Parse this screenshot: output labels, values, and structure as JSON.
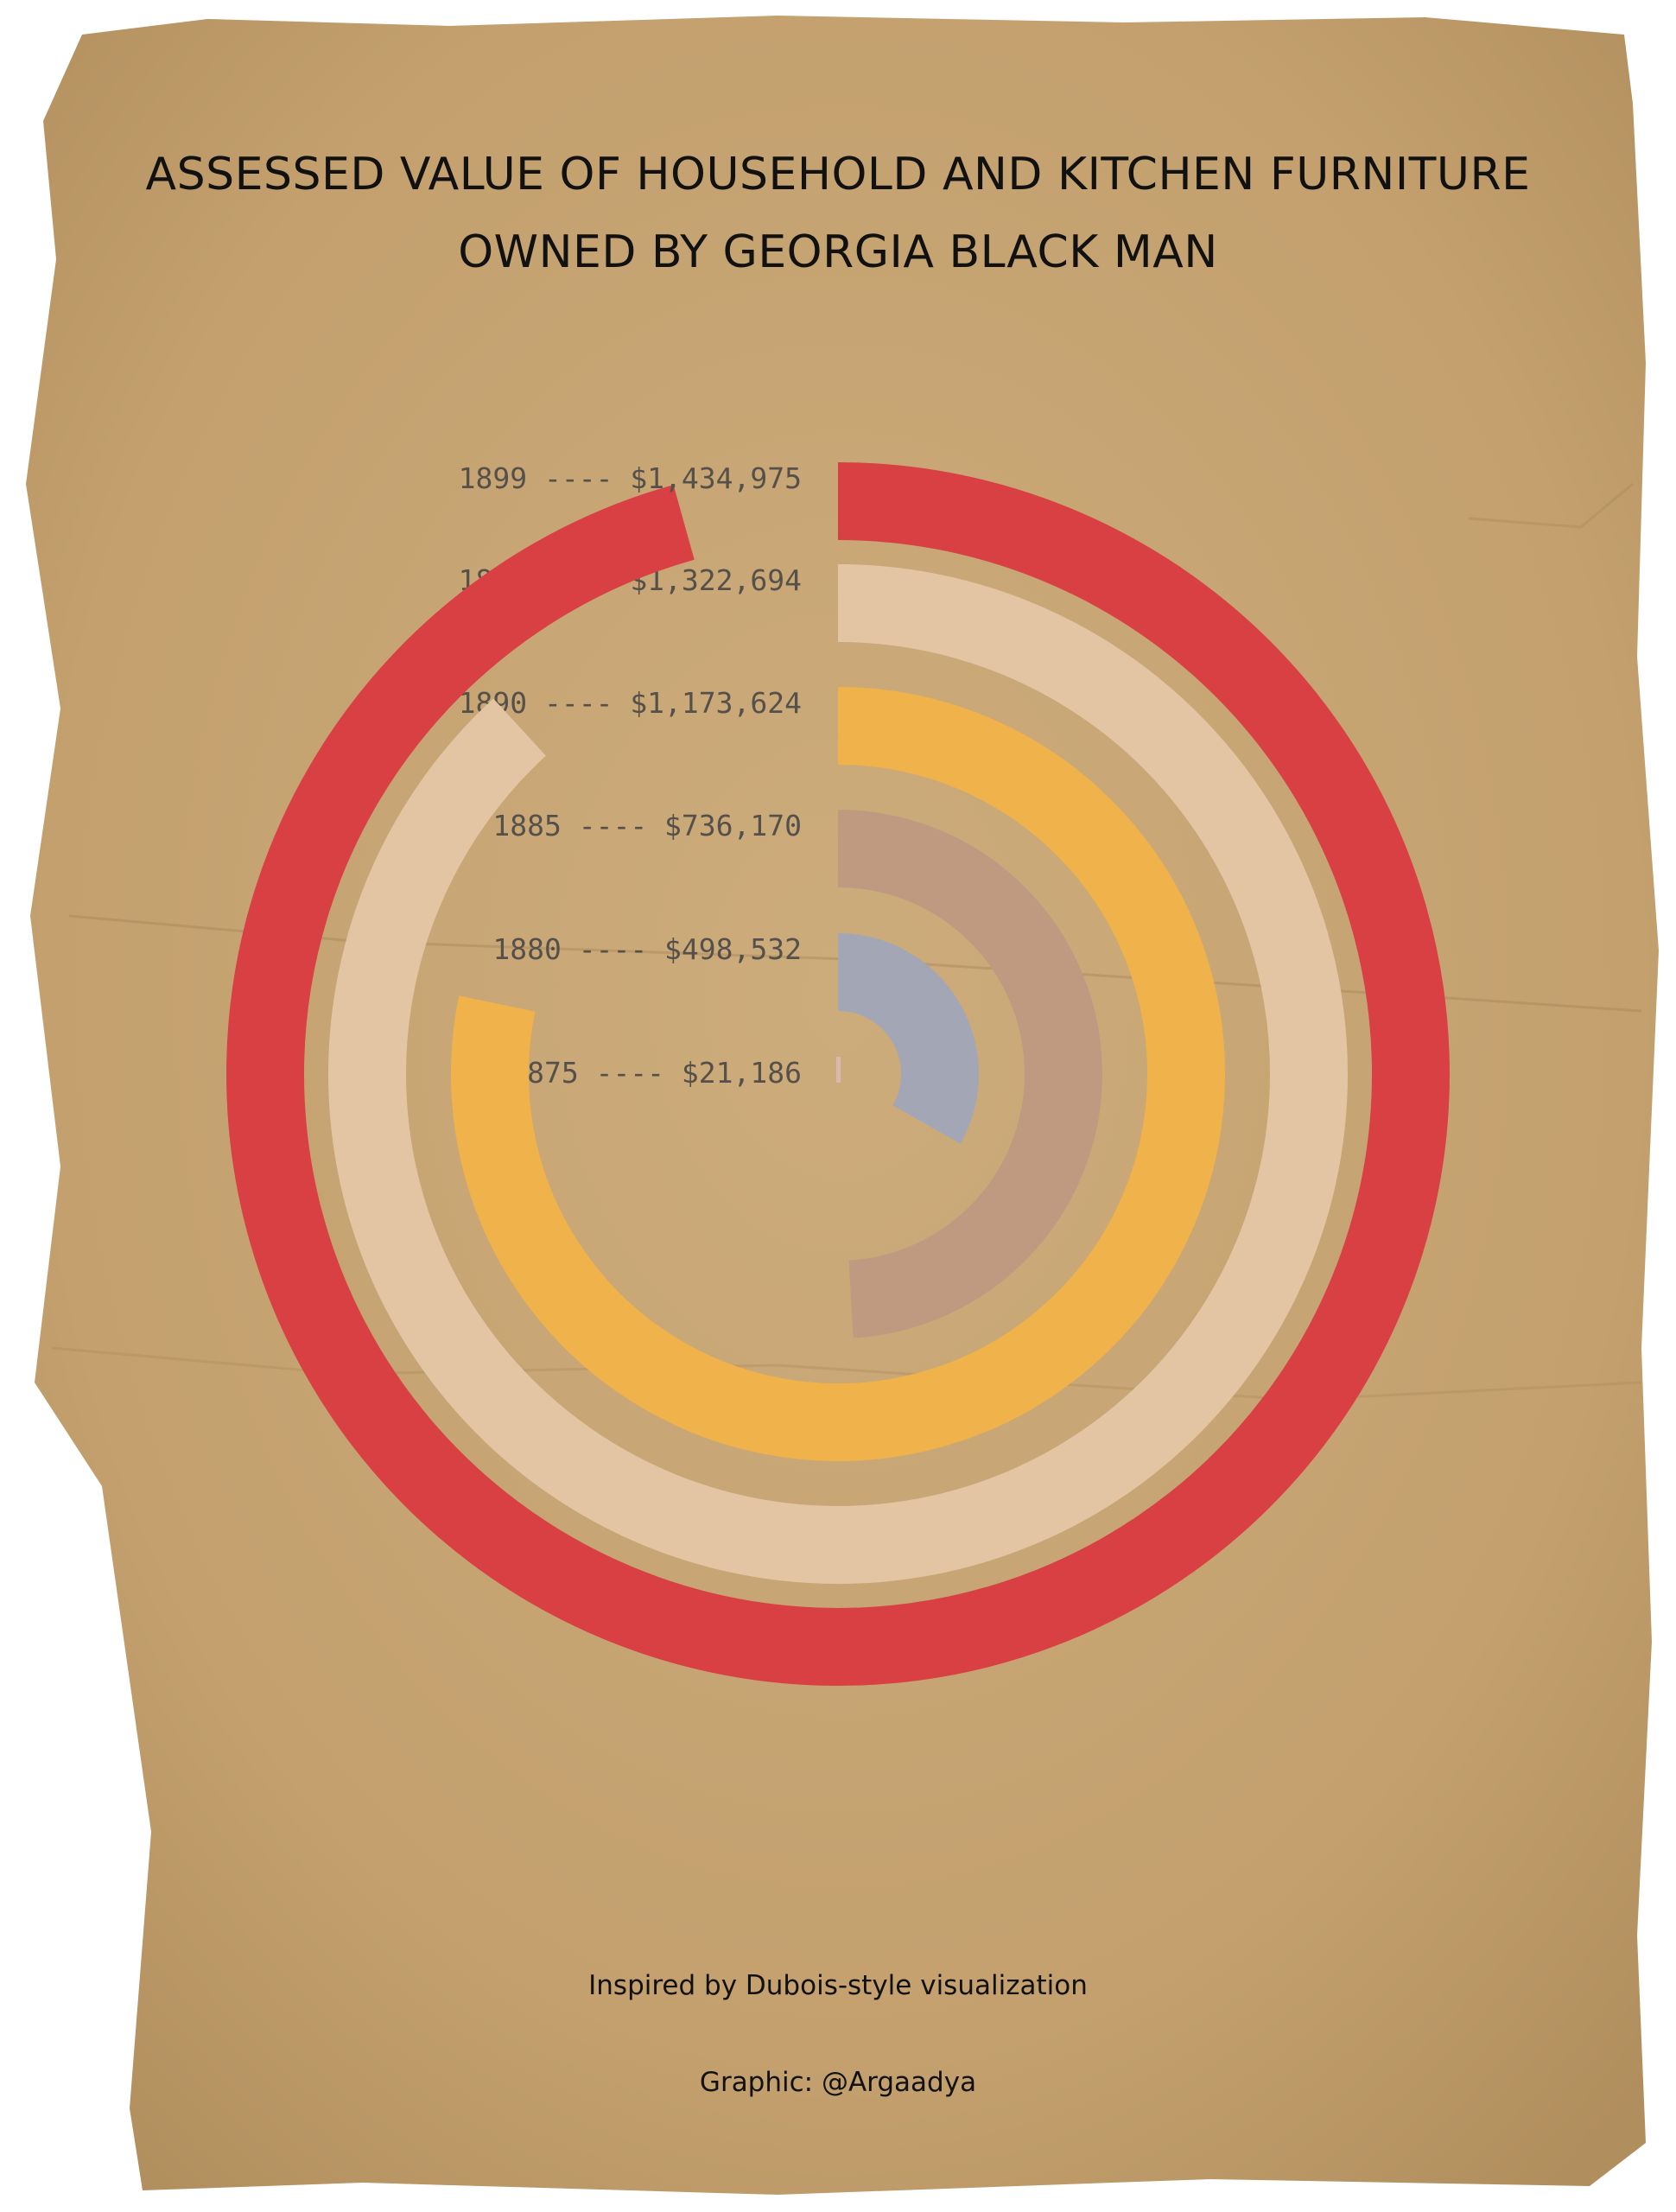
{
  "title_lines": [
    "ASSESSED VALUE OF HOUSEHOLD AND KITCHEN FURNITURE",
    "OWNED BY GEORGIA BLACK MAN"
  ],
  "chart_data": {
    "type": "radial-bar",
    "title": "ASSESSED VALUE OF HOUSEHOLD AND KITCHEN FURNITURE OWNED BY GEORGIA BLACK MAN",
    "max_value": 1500000,
    "series": [
      {
        "year": "1875",
        "value": 21186,
        "label": "1875 ---- $21,186",
        "color": "#d9b8b0"
      },
      {
        "year": "1880",
        "value": 498532,
        "label": "1880 ---- $498,532",
        "color": "#a3a6b5"
      },
      {
        "year": "1885",
        "value": 736170,
        "label": "1885 ---- $736,170",
        "color": "#c09a80"
      },
      {
        "year": "1890",
        "value": 1173624,
        "label": "1890 ---- $1,173,624",
        "color": "#f0b24a"
      },
      {
        "year": "1895",
        "value": 1322694,
        "label": "1895 ---- $1,322,694",
        "color": "#e3c5a3"
      },
      {
        "year": "1899",
        "value": 1434975,
        "label": "1899 ---- $1,434,975",
        "color": "#d94044"
      }
    ]
  },
  "footer": {
    "inspired": "Inspired by Dubois-style visualization",
    "graphic": "Graphic: @Argaadya"
  }
}
